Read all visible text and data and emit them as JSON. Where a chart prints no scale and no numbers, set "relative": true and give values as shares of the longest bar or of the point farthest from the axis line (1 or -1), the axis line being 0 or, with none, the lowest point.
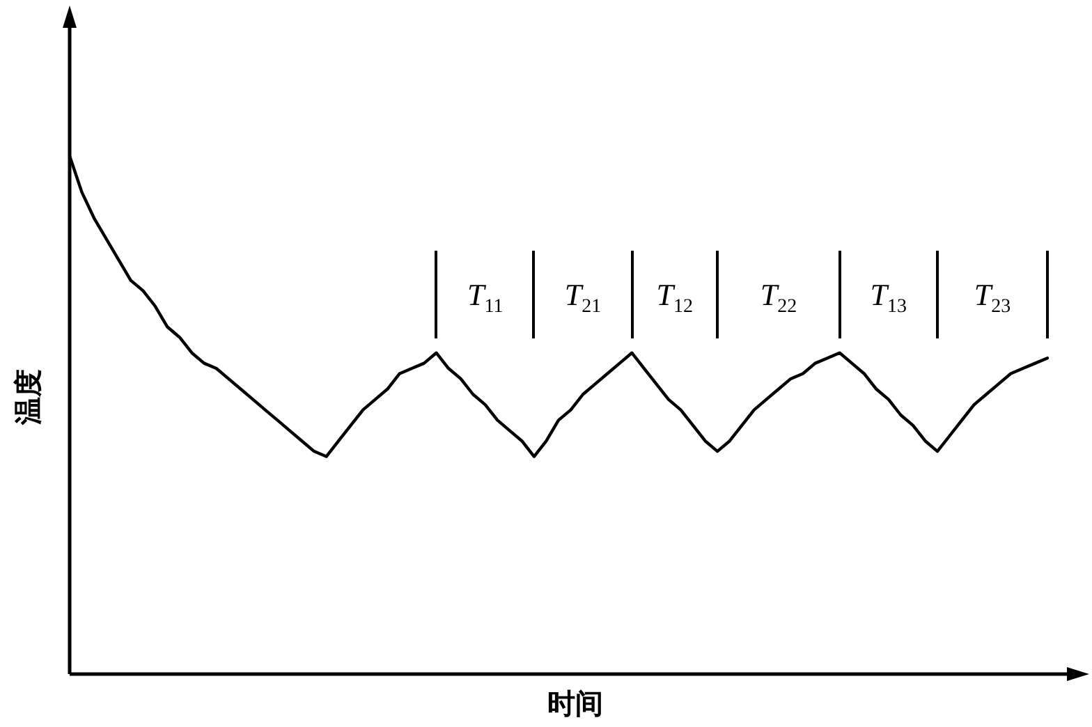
{
  "chart_data": {
    "type": "line",
    "relative": true,
    "xlabel": "时间",
    "ylabel": "温度",
    "marker": "none",
    "line_style": "solid",
    "categories": [
      null,
      null,
      null,
      null,
      null,
      null,
      null,
      null,
      null,
      null,
      null,
      null,
      null,
      null,
      null,
      null,
      null,
      null,
      null,
      null,
      null,
      null,
      null,
      null,
      null,
      null,
      null,
      null,
      null,
      null,
      null,
      null,
      null,
      null,
      null,
      null,
      null,
      null,
      null,
      null,
      null,
      null,
      null,
      null,
      null,
      null,
      null,
      null,
      null,
      null,
      null,
      null,
      null,
      null,
      null,
      null,
      null,
      null,
      null,
      null,
      null,
      null,
      null,
      null,
      null,
      null,
      null,
      null,
      null,
      null,
      null,
      null,
      null,
      null,
      null,
      null,
      null,
      null,
      null,
      null,
      null
    ],
    "series": [
      {
        "color": "#000000",
        "values": [
          1.0,
          0.93,
          0.88,
          0.84,
          0.8,
          0.76,
          0.74,
          0.71,
          0.67,
          0.65,
          0.62,
          0.6,
          0.59,
          0.57,
          0.55,
          0.53,
          0.51,
          0.49,
          0.47,
          0.45,
          0.43,
          0.42,
          0.45,
          0.48,
          0.51,
          0.53,
          0.55,
          0.58,
          0.59,
          0.6,
          0.62,
          0.59,
          0.57,
          0.54,
          0.52,
          0.49,
          0.47,
          0.45,
          0.42,
          0.45,
          0.49,
          0.51,
          0.54,
          0.56,
          0.58,
          0.6,
          0.62,
          0.59,
          0.56,
          0.53,
          0.51,
          0.48,
          0.45,
          0.43,
          0.45,
          0.48,
          0.51,
          0.53,
          0.55,
          0.57,
          0.58,
          0.6,
          0.61,
          0.62,
          0.6,
          0.58,
          0.55,
          0.53,
          0.5,
          0.48,
          0.45,
          0.43,
          0.46,
          0.49,
          0.52,
          0.54,
          0.56,
          0.58,
          0.59,
          0.6,
          0.61
        ]
      }
    ],
    "annotations": [
      "T$_{11}$",
      "T$_{21}$",
      "T$_{12}$",
      "T$_{22}$",
      "T$_{13}$",
      "T$_{23}$"
    ]
  }
}
